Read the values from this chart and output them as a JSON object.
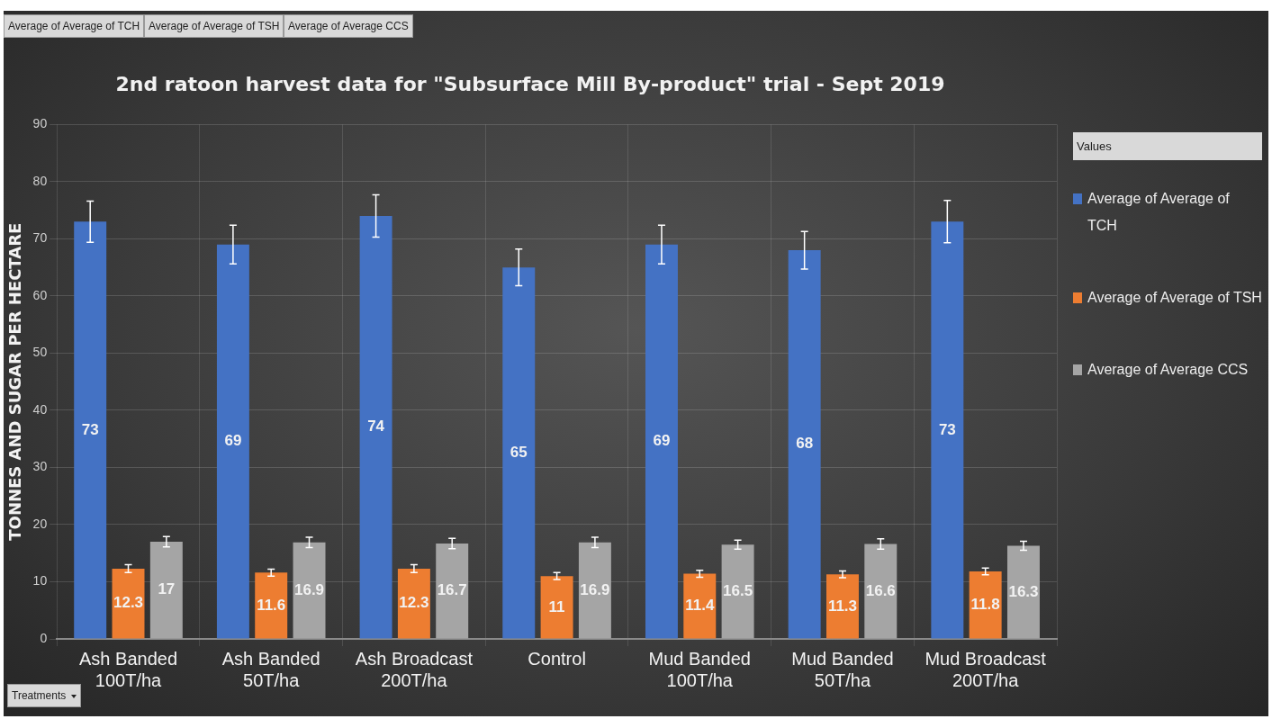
{
  "chart_data": {
    "type": "bar",
    "title": "2nd ratoon harvest data for \"Subsurface Mill By-product\" trial - Sept 2019",
    "ylabel": "TONNES AND SUGAR PER HECTARE",
    "legend_title": "Values",
    "annotations": [
      "Average of Average of TCH",
      "Average of Average of TSH",
      "Average of Average CCS",
      "Treatments"
    ],
    "categories": [
      "Ash Banded 100T/ha",
      "Ash Banded 50T/ha",
      "Ash Broadcast 200T/ha",
      "Control",
      "Mud Banded 100T/ha",
      "Mud Banded 50T/ha",
      "Mud Broadcast 200T/ha"
    ],
    "series": [
      {
        "name": "Average of Average of TCH",
        "color": "#4472c4",
        "values": [
          73,
          69,
          74,
          65,
          69,
          68,
          73
        ],
        "errors": [
          3.6,
          3.4,
          3.7,
          3.2,
          3.4,
          3.3,
          3.7
        ]
      },
      {
        "name": "Average of Average of TSH",
        "color": "#ed7d31",
        "values": [
          12.3,
          11.6,
          12.3,
          11,
          11.4,
          11.3,
          11.8
        ],
        "errors": [
          0.7,
          0.6,
          0.7,
          0.6,
          0.6,
          0.6,
          0.6
        ]
      },
      {
        "name": "Average of Average CCS",
        "color": "#a5a5a5",
        "values": [
          17,
          16.9,
          16.7,
          16.9,
          16.5,
          16.6,
          16.3
        ],
        "errors": [
          0.9,
          0.9,
          0.9,
          0.9,
          0.8,
          0.9,
          0.8
        ]
      }
    ],
    "ylim": [
      0,
      90
    ],
    "yticks": [
      0,
      10,
      20,
      30,
      40,
      50,
      60,
      70,
      80,
      90
    ],
    "grid": true,
    "legend": "right",
    "data_labels": true
  }
}
